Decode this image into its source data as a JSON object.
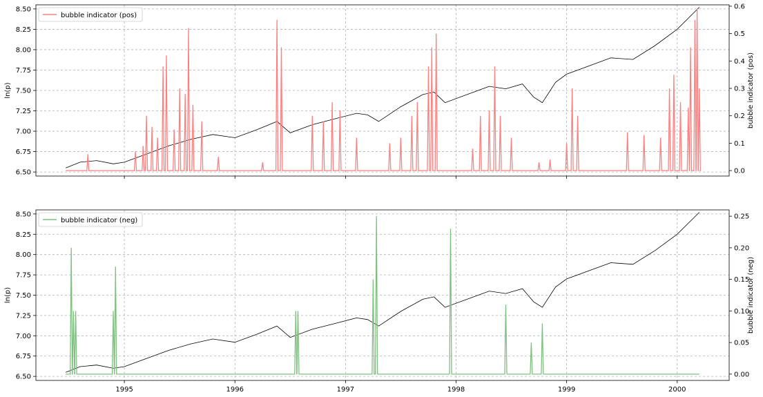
{
  "chart_data": [
    {
      "type": "line",
      "panel": "top",
      "x_ticks": [
        "1995",
        "1996",
        "1997",
        "1998",
        "1999",
        "2000"
      ],
      "xlim": [
        1994.2,
        2000.47
      ],
      "ylabel_left": "ln(p)",
      "ylabel_right": "bubble indicator (pos)",
      "ylim_left": [
        6.45,
        8.55
      ],
      "ylim_right": [
        -0.02,
        0.605
      ],
      "y_ticks_left": [
        "6.50",
        "6.75",
        "7.00",
        "7.25",
        "7.50",
        "7.75",
        "8.00",
        "8.25",
        "8.50"
      ],
      "y_ticks_right": [
        "0.0",
        "0.1",
        "0.2",
        "0.3",
        "0.4",
        "0.5",
        "0.6"
      ],
      "grid": true,
      "legend": {
        "label": "bubble indicator (pos)",
        "position": "top-left"
      },
      "series": [
        {
          "name": "ln(p)",
          "axis": "left",
          "color": "#000000",
          "x": [
            1994.47,
            1994.6,
            1994.75,
            1994.9,
            1995.0,
            1995.2,
            1995.4,
            1995.6,
            1995.8,
            1996.0,
            1996.2,
            1996.38,
            1996.5,
            1996.7,
            1996.9,
            1997.1,
            1997.2,
            1997.3,
            1997.5,
            1997.7,
            1997.8,
            1997.9,
            1998.1,
            1998.3,
            1998.45,
            1998.6,
            1998.7,
            1998.78,
            1998.9,
            1999.0,
            1999.2,
            1999.4,
            1999.6,
            1999.8,
            2000.0,
            2000.2
          ],
          "y": [
            6.55,
            6.62,
            6.64,
            6.6,
            6.62,
            6.72,
            6.82,
            6.9,
            6.96,
            6.92,
            7.02,
            7.12,
            6.98,
            7.08,
            7.15,
            7.22,
            7.2,
            7.12,
            7.3,
            7.45,
            7.48,
            7.35,
            7.45,
            7.55,
            7.52,
            7.58,
            7.42,
            7.35,
            7.6,
            7.7,
            7.8,
            7.9,
            7.88,
            8.05,
            8.25,
            8.52
          ]
        },
        {
          "name": "bubble indicator (pos)",
          "axis": "right",
          "color": "#ff7f7f",
          "baseline": 0.0,
          "spikes": [
            [
              1994.67,
              0.06
            ],
            [
              1995.1,
              0.07
            ],
            [
              1995.17,
              0.09
            ],
            [
              1995.2,
              0.2
            ],
            [
              1995.25,
              0.16
            ],
            [
              1995.3,
              0.12
            ],
            [
              1995.35,
              0.38
            ],
            [
              1995.38,
              0.42
            ],
            [
              1995.45,
              0.15
            ],
            [
              1995.5,
              0.3
            ],
            [
              1995.55,
              0.28
            ],
            [
              1995.58,
              0.52
            ],
            [
              1995.62,
              0.24
            ],
            [
              1995.7,
              0.18
            ],
            [
              1995.85,
              0.05
            ],
            [
              1996.25,
              0.03
            ],
            [
              1996.38,
              0.55
            ],
            [
              1996.42,
              0.45
            ],
            [
              1996.7,
              0.2
            ],
            [
              1996.8,
              0.18
            ],
            [
              1996.88,
              0.25
            ],
            [
              1996.95,
              0.22
            ],
            [
              1997.1,
              0.12
            ],
            [
              1997.4,
              0.1
            ],
            [
              1997.5,
              0.12
            ],
            [
              1997.6,
              0.2
            ],
            [
              1997.65,
              0.25
            ],
            [
              1997.75,
              0.38
            ],
            [
              1997.78,
              0.45
            ],
            [
              1997.82,
              0.5
            ],
            [
              1998.15,
              0.08
            ],
            [
              1998.22,
              0.2
            ],
            [
              1998.3,
              0.22
            ],
            [
              1998.35,
              0.38
            ],
            [
              1998.4,
              0.2
            ],
            [
              1998.5,
              0.12
            ],
            [
              1998.75,
              0.03
            ],
            [
              1998.85,
              0.04
            ],
            [
              1999.0,
              0.1
            ],
            [
              1999.05,
              0.3
            ],
            [
              1999.1,
              0.2
            ],
            [
              1999.55,
              0.14
            ],
            [
              1999.7,
              0.13
            ],
            [
              1999.85,
              0.12
            ],
            [
              1999.93,
              0.3
            ],
            [
              1999.97,
              0.35
            ],
            [
              2000.03,
              0.25
            ],
            [
              2000.1,
              0.23
            ],
            [
              2000.12,
              0.45
            ],
            [
              2000.16,
              0.55
            ],
            [
              2000.18,
              0.59
            ],
            [
              2000.2,
              0.3
            ]
          ]
        }
      ]
    },
    {
      "type": "line",
      "panel": "bottom",
      "x_ticks": [
        "1995",
        "1996",
        "1997",
        "1998",
        "1999",
        "2000"
      ],
      "xlim": [
        1994.2,
        2000.47
      ],
      "ylabel_left": "ln(p)",
      "ylabel_right": "bubble indicator (neg)",
      "ylim_left": [
        6.45,
        8.55
      ],
      "ylim_right": [
        -0.01,
        0.26
      ],
      "y_ticks_left": [
        "6.50",
        "6.75",
        "7.00",
        "7.25",
        "7.50",
        "7.75",
        "8.00",
        "8.25",
        "8.50"
      ],
      "y_ticks_right": [
        "0.00",
        "0.05",
        "0.10",
        "0.15",
        "0.20",
        "0.25"
      ],
      "grid": true,
      "legend": {
        "label": "bubble indicator (neg)",
        "position": "top-left"
      },
      "series": [
        {
          "name": "ln(p)",
          "axis": "left",
          "color": "#000000",
          "x": [
            1994.47,
            1994.6,
            1994.75,
            1994.9,
            1995.0,
            1995.2,
            1995.4,
            1995.6,
            1995.8,
            1996.0,
            1996.2,
            1996.38,
            1996.5,
            1996.7,
            1996.9,
            1997.1,
            1997.2,
            1997.3,
            1997.5,
            1997.7,
            1997.8,
            1997.9,
            1998.1,
            1998.3,
            1998.45,
            1998.6,
            1998.7,
            1998.78,
            1998.9,
            1999.0,
            1999.2,
            1999.4,
            1999.6,
            1999.8,
            2000.0,
            2000.2
          ],
          "y": [
            6.55,
            6.62,
            6.64,
            6.6,
            6.62,
            6.72,
            6.82,
            6.9,
            6.96,
            6.92,
            7.02,
            7.12,
            6.98,
            7.08,
            7.15,
            7.22,
            7.2,
            7.12,
            7.3,
            7.45,
            7.48,
            7.35,
            7.45,
            7.55,
            7.52,
            7.58,
            7.42,
            7.35,
            7.6,
            7.7,
            7.8,
            7.9,
            7.88,
            8.05,
            8.25,
            8.52
          ]
        },
        {
          "name": "bubble indicator (neg)",
          "axis": "right",
          "color": "#7fbf7f",
          "baseline": 0.0,
          "spikes": [
            [
              1994.52,
              0.2
            ],
            [
              1994.54,
              0.1
            ],
            [
              1994.56,
              0.1
            ],
            [
              1994.9,
              0.1
            ],
            [
              1994.92,
              0.17
            ],
            [
              1996.55,
              0.1
            ],
            [
              1996.57,
              0.1
            ],
            [
              1997.25,
              0.15
            ],
            [
              1997.28,
              0.25
            ],
            [
              1997.95,
              0.23
            ],
            [
              1998.45,
              0.11
            ],
            [
              1998.68,
              0.05
            ],
            [
              1998.78,
              0.08
            ]
          ]
        }
      ]
    }
  ]
}
